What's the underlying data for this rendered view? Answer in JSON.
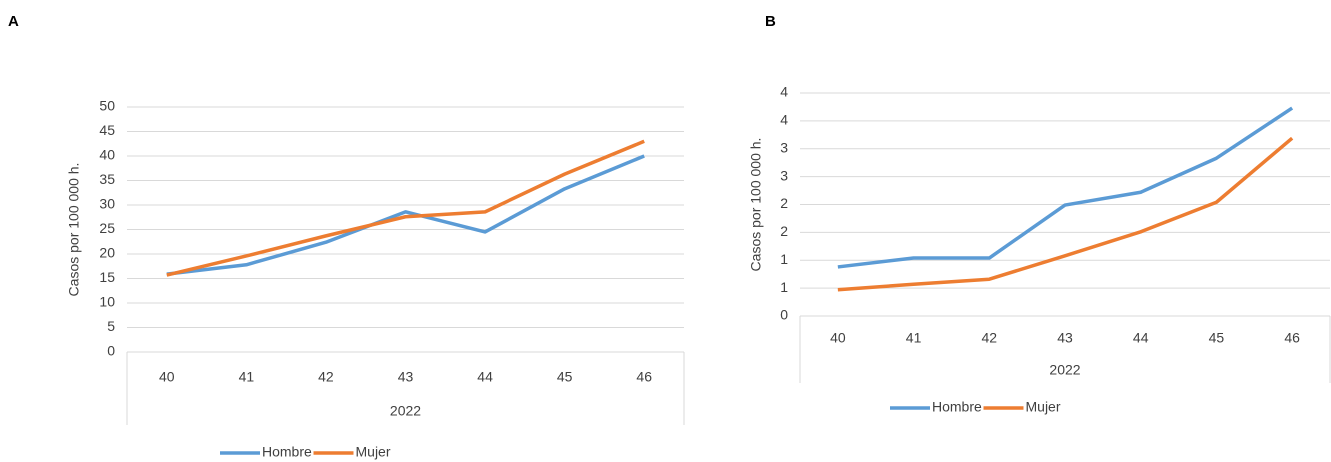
{
  "chart_data": [
    {
      "type": "line",
      "panel_label": "A",
      "y_label": "Casos por 100 000 h.",
      "categories": [
        "40",
        "41",
        "42",
        "43",
        "44",
        "45",
        "46"
      ],
      "x_group_label": "2022",
      "series": [
        {
          "name": "Hombre",
          "color": "#5b9bd5",
          "values": [
            15.9,
            17.8,
            22.4,
            28.6,
            24.5,
            33.3,
            40
          ]
        },
        {
          "name": "Mujer",
          "color": "#ed7d31",
          "values": [
            15.7,
            19.6,
            23.7,
            27.6,
            28.6,
            36.3,
            43
          ]
        }
      ],
      "ylim": [
        0,
        50
      ],
      "yticks": [
        0,
        5,
        10,
        15,
        20,
        25,
        30,
        35,
        40,
        45,
        50
      ],
      "grid": true,
      "legend": "bottom"
    },
    {
      "type": "line",
      "panel_label": "B",
      "y_label": "Casos por 100 000 h.",
      "categories": [
        "40",
        "41",
        "42",
        "43",
        "44",
        "45",
        "46"
      ],
      "x_group_label": "2022",
      "series": [
        {
          "name": "Hombre",
          "color": "#5b9bd5",
          "values": [
            0.88,
            1.04,
            1.04,
            1.99,
            2.22,
            2.83,
            3.73
          ]
        },
        {
          "name": "Mujer",
          "color": "#ed7d31",
          "values": [
            0.47,
            0.57,
            0.66,
            1.08,
            1.51,
            2.04,
            3.19
          ]
        }
      ],
      "ylim": [
        0,
        4
      ],
      "yticks": [
        0,
        {
          "value": 0.5,
          "label": "1"
        },
        1,
        {
          "value": 1.5,
          "label": "2"
        },
        2,
        {
          "value": 2.5,
          "label": "3"
        },
        3,
        {
          "value": 3.5,
          "label": "4"
        },
        4
      ],
      "grid": true,
      "legend": "bottom"
    }
  ]
}
